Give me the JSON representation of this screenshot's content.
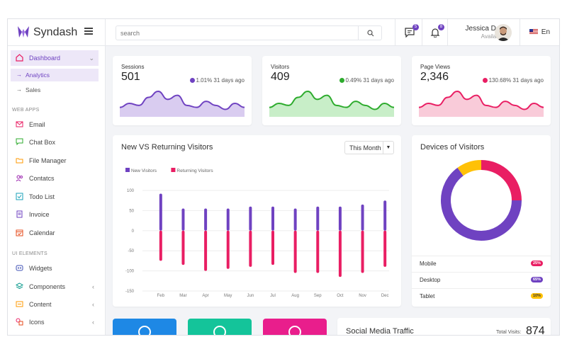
{
  "app": {
    "name": "Syndash"
  },
  "header": {
    "search_placeholder": "search",
    "messages_badge": "5",
    "notifications_badge": "8",
    "user_name": "Jessica Doe",
    "user_status": "Available",
    "language": "En"
  },
  "sidebar": {
    "dashboard": "Dashboard",
    "sub": [
      "Analytics",
      "Sales"
    ],
    "web_apps_label": "WEB APPS",
    "web_apps": [
      "Email",
      "Chat Box",
      "File Manager",
      "Contatcs",
      "Todo List",
      "Invoice",
      "Calendar"
    ],
    "ui_label": "UI ELEMENTS",
    "ui": [
      "Widgets",
      "Components",
      "Content",
      "Icons"
    ]
  },
  "stats": [
    {
      "title": "Sessions",
      "value": "501",
      "change": "1.01% 31 days ago",
      "color": "#6f42c1",
      "fill": "#d9ccf0",
      "series": [
        4,
        6,
        5,
        9,
        12,
        8,
        10,
        5,
        4,
        7,
        5,
        3,
        6,
        4
      ]
    },
    {
      "title": "Visitors",
      "value": "409",
      "change": "0.49% 31 days ago",
      "color": "#2dab2d",
      "fill": "#c8eec8",
      "series": [
        4,
        6,
        5,
        9,
        12,
        8,
        10,
        5,
        4,
        7,
        5,
        3,
        6,
        4
      ]
    },
    {
      "title": "Page Views",
      "value": "2,346",
      "change": "130.68% 31 days ago",
      "color": "#e91e63",
      "fill": "#f9cbd9",
      "series": [
        4,
        6,
        5,
        9,
        12,
        8,
        10,
        5,
        4,
        7,
        5,
        3,
        6,
        4
      ]
    }
  ],
  "visitors_card": {
    "title": "New VS Returning Visitors",
    "dropdown": "This Month"
  },
  "chart_data": {
    "type": "bar",
    "categories": [
      "Feb",
      "Mar",
      "Apr",
      "May",
      "Jun",
      "Jul",
      "Aug",
      "Sep",
      "Oct",
      "Nov",
      "Dec"
    ],
    "series": [
      {
        "name": "New Visitors",
        "color": "#6f42c1",
        "values": [
          92,
          55,
          55,
          55,
          60,
          60,
          55,
          60,
          60,
          65,
          75
        ]
      },
      {
        "name": "Returning Visitors",
        "color": "#e91e63",
        "values": [
          -75,
          -85,
          -100,
          -95,
          -90,
          -85,
          -105,
          -105,
          -115,
          -105,
          -90
        ]
      }
    ],
    "ylim": [
      -150,
      100
    ],
    "yticks": [
      100,
      50,
      0,
      -50,
      -100,
      -150
    ],
    "grid": true,
    "legend": "top-left"
  },
  "devices": {
    "title": "Devices of Visitors",
    "items": [
      {
        "label": "Mobile",
        "pct": "25%",
        "color": "#e91e63"
      },
      {
        "label": "Desktop",
        "pct": "65%",
        "color": "#6f42c1"
      },
      {
        "label": "Tablet",
        "pct": "10%",
        "color": "#ffc107"
      }
    ]
  },
  "social": {
    "title": "Social Media Traffic",
    "total_label": "Total Visits:",
    "total_value": "874"
  },
  "tiles": [
    {
      "color": "#1e88e5",
      "icon": "user-icon"
    },
    {
      "color": "#14c49a",
      "icon": "file-icon"
    },
    {
      "color": "#e91e8c",
      "icon": "profile-icon"
    }
  ]
}
